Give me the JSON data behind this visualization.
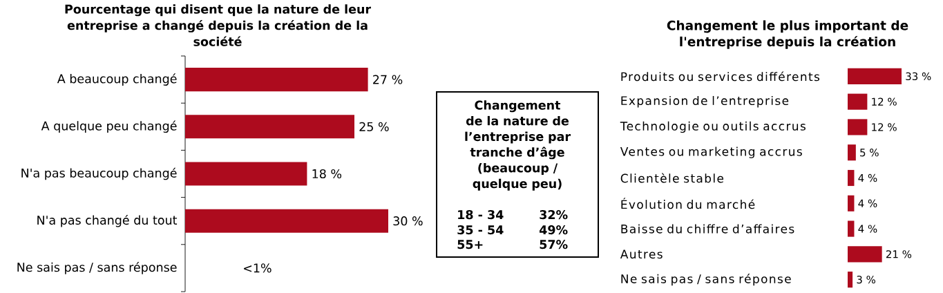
{
  "chart_data": [
    {
      "type": "bar",
      "orientation": "horizontal",
      "title": "Pourcentage qui disent que la nature de leur entreprise a changé depuis la création de la société",
      "categories": [
        "A beaucoup changé",
        "A quelque peu changé",
        "N'a pas beaucoup changé",
        "N'a pas changé du tout",
        "Ne sais pas / sans réponse"
      ],
      "values": [
        27,
        25,
        18,
        30,
        null
      ],
      "value_labels": [
        "27 %",
        "25 %",
        "18 %",
        "30 %",
        "<1%"
      ],
      "color": "#ad0b1e",
      "tick_labels": "y"
    },
    {
      "type": "other",
      "title": "Changement de la nature de l’entreprise par tranche d’âge (beaucoup / quelque peu)",
      "categories": [
        "18 - 34",
        "35 - 54",
        "55+"
      ],
      "values": [
        32,
        49,
        57
      ],
      "value_labels": [
        "32%",
        "49%",
        "57%"
      ]
    },
    {
      "type": "bar",
      "orientation": "horizontal",
      "title": "Changement le plus important de l'entreprise depuis la création",
      "categories": [
        "Produits ou services différents",
        "Expansion de l’entreprise",
        "Technologie ou outils accrus",
        "Ventes ou marketing accrus",
        "Clientèle stable",
        "Évolution du marché",
        "Baisse du chiffre d’affaires",
        "Autres",
        "Ne sais pas / sans réponse"
      ],
      "values": [
        33,
        12,
        12,
        5,
        4,
        4,
        4,
        21,
        3
      ],
      "value_labels": [
        "33 %",
        "12 %",
        "12 %",
        "5 %",
        "4 %",
        "4 %",
        "4 %",
        "21 %",
        "3 %"
      ],
      "color": "#ad0b1e",
      "tick_labels": "y"
    }
  ]
}
